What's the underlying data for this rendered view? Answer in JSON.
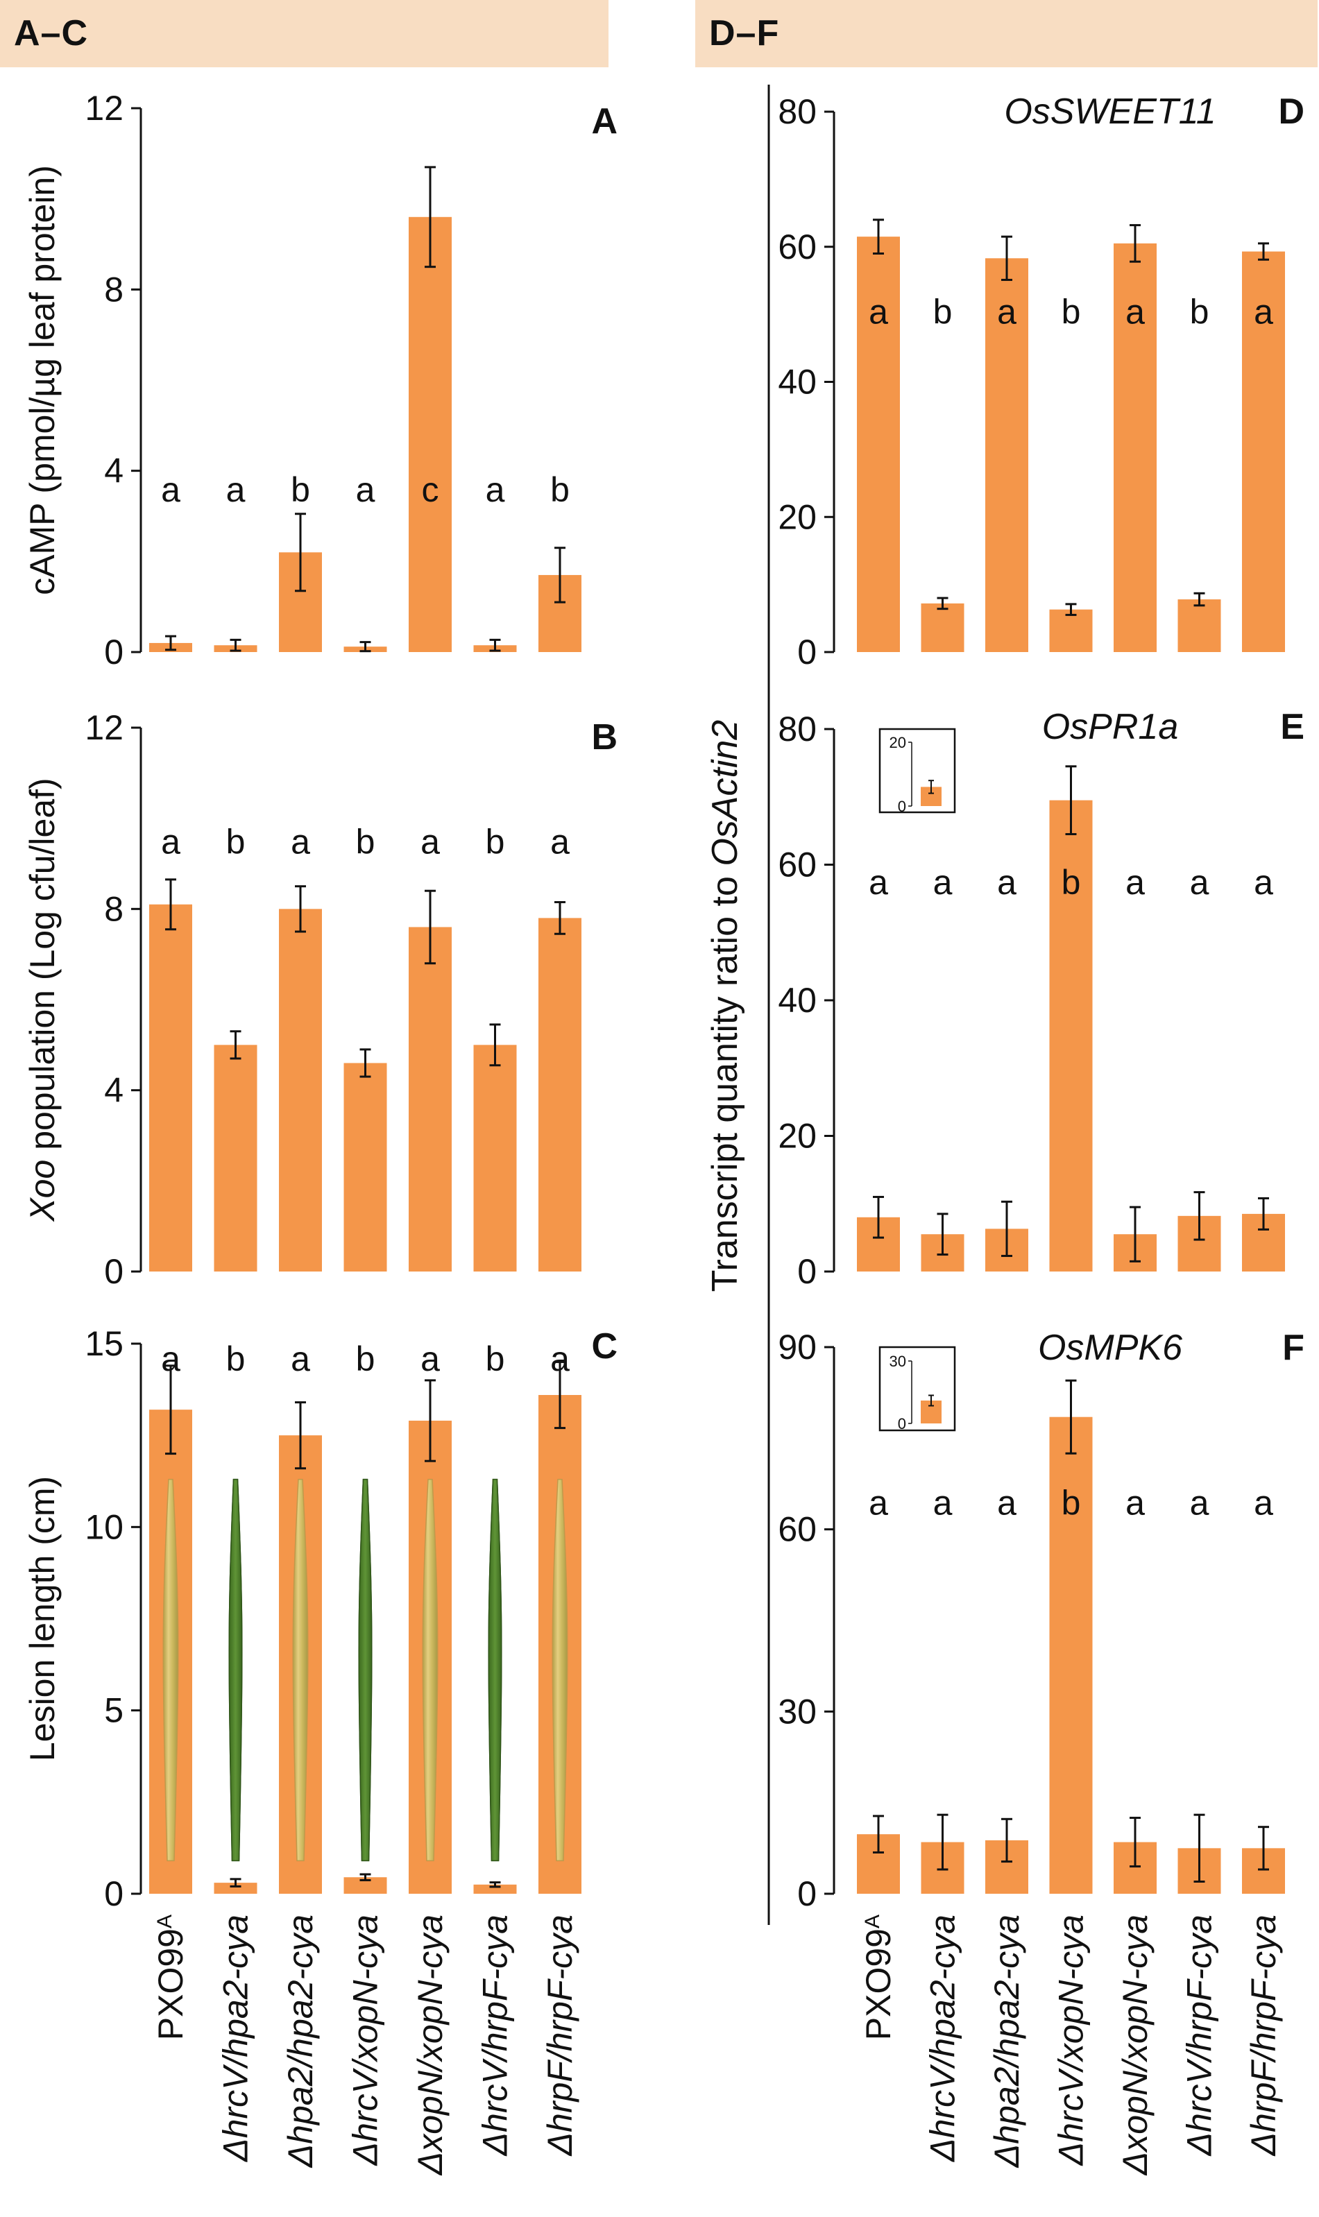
{
  "headers": {
    "left": "A–C",
    "right": "D–F"
  },
  "bar_color": "#f4964a",
  "x_labels": [
    {
      "base": "PXO99",
      "sup": "A",
      "italic": false
    },
    {
      "text": "ΔhrcV/hpa2-cya",
      "italic": true
    },
    {
      "text": "Δhpa2/hpa2-cya",
      "italic": true
    },
    {
      "text": "ΔhrcV/xopN-cya",
      "italic": true
    },
    {
      "text": "ΔxopN/xopN-cya",
      "italic": true
    },
    {
      "text": "ΔhrcV/hrpF-cya",
      "italic": true
    },
    {
      "text": "ΔhrpF/hrpF-cya",
      "italic": true
    }
  ],
  "shared_ylabel_right": {
    "prefix": "Transcript quantity ratio to ",
    "italic": "OsActin2"
  },
  "chart_data": [
    {
      "id": "A",
      "panel_label": "A",
      "type": "bar",
      "title": "",
      "ylabel": "cAMP (pmol/µg leaf protein)",
      "ylim": [
        0,
        12
      ],
      "yticks": [
        "0",
        "4",
        "8",
        "12"
      ],
      "categories": [
        "PXO99A",
        "ΔhrcV/hpa2-cya",
        "Δhpa2/hpa2-cya",
        "ΔhrcV/xopN-cya",
        "ΔxopN/xopN-cya",
        "ΔhrcV/hrpF-cya",
        "ΔhrpF/hrpF-cya"
      ],
      "values": [
        0.2,
        0.15,
        2.2,
        0.12,
        9.6,
        0.15,
        1.7
      ],
      "errors": [
        0.15,
        0.12,
        0.85,
        0.1,
        1.1,
        0.12,
        0.6
      ],
      "letters": [
        "a",
        "a",
        "b",
        "a",
        "c",
        "a",
        "b"
      ],
      "letter_y": 3.6
    },
    {
      "id": "B",
      "panel_label": "B",
      "type": "bar",
      "title": "",
      "ylabel_italic": "Xoo",
      "ylabel": " population (Log cfu/leaf)",
      "ylim": [
        0,
        12
      ],
      "yticks": [
        "0",
        "4",
        "8",
        "12"
      ],
      "categories": [
        "PXO99A",
        "ΔhrcV/hpa2-cya",
        "Δhpa2/hpa2-cya",
        "ΔhrcV/xopN-cya",
        "ΔxopN/xopN-cya",
        "ΔhrcV/hrpF-cya",
        "ΔhrpF/hrpF-cya"
      ],
      "values": [
        8.1,
        5.0,
        8.0,
        4.6,
        7.6,
        5.0,
        7.8
      ],
      "errors": [
        0.55,
        0.3,
        0.5,
        0.3,
        0.8,
        0.45,
        0.35
      ],
      "letters": [
        "a",
        "b",
        "a",
        "b",
        "a",
        "b",
        "a"
      ],
      "letter_y": 9.5
    },
    {
      "id": "C",
      "panel_label": "C",
      "type": "bar",
      "title": "",
      "ylabel": "Lesion length (cm)",
      "ylim": [
        0,
        15
      ],
      "yticks": [
        "0",
        "5",
        "10",
        "15"
      ],
      "categories": [
        "PXO99A",
        "ΔhrcV/hpa2-cya",
        "Δhpa2/hpa2-cya",
        "ΔhrcV/xopN-cya",
        "ΔxopN/xopN-cya",
        "ΔhrcV/hrpF-cya",
        "ΔhrpF/hrpF-cya"
      ],
      "values": [
        13.2,
        0.3,
        12.5,
        0.45,
        12.9,
        0.25,
        13.6
      ],
      "errors": [
        1.2,
        0.1,
        0.9,
        0.08,
        1.1,
        0.06,
        0.9
      ],
      "letters": [
        "a",
        "b",
        "a",
        "b",
        "a",
        "b",
        "a"
      ],
      "letter_y": 14.6,
      "leaf_images": [
        "lesioned",
        "healthy",
        "lesioned",
        "healthy",
        "lesioned",
        "healthy",
        "lesioned"
      ]
    },
    {
      "id": "D",
      "panel_label": "D",
      "type": "bar",
      "title": "OsSWEET11",
      "ylim": [
        0,
        80
      ],
      "yticks": [
        "0",
        "20",
        "40",
        "60",
        "80"
      ],
      "categories": [
        "PXO99A",
        "ΔhrcV/hpa2-cya",
        "Δhpa2/hpa2-cya",
        "ΔhrcV/xopN-cya",
        "ΔxopN/xopN-cya",
        "ΔhrcV/hrpF-cya",
        "ΔhrpF/hrpF-cya"
      ],
      "values": [
        61.5,
        7.2,
        58.3,
        6.3,
        60.5,
        7.8,
        59.3
      ],
      "errors": [
        2.5,
        0.8,
        3.2,
        0.8,
        2.7,
        0.9,
        1.2
      ],
      "letters": [
        "a",
        "b",
        "a",
        "b",
        "a",
        "b",
        "a"
      ],
      "letter_y": 50.5
    },
    {
      "id": "E",
      "panel_label": "E",
      "type": "bar",
      "title": "OsPR1a",
      "ylim": [
        0,
        80
      ],
      "yticks": [
        "0",
        "20",
        "40",
        "60",
        "80"
      ],
      "categories": [
        "PXO99A",
        "ΔhrcV/hpa2-cya",
        "Δhpa2/hpa2-cya",
        "ΔhrcV/xopN-cya",
        "ΔxopN/xopN-cya",
        "ΔhrcV/hrpF-cya",
        "ΔhrpF/hrpF-cya"
      ],
      "values": [
        8.0,
        5.5,
        6.3,
        69.5,
        5.5,
        8.2,
        8.5
      ],
      "errors": [
        3.0,
        3.0,
        4.0,
        5.0,
        4.0,
        3.5,
        2.3
      ],
      "letters": [
        "a",
        "a",
        "a",
        "b",
        "a",
        "a",
        "a"
      ],
      "letter_y": 57.5,
      "inset": {
        "ylim": [
          0,
          20
        ],
        "yticks": [
          "0",
          "20"
        ],
        "value": 6,
        "error": 2
      }
    },
    {
      "id": "F",
      "panel_label": "F",
      "type": "bar",
      "title": "OsMPK6",
      "ylim": [
        0,
        90
      ],
      "yticks": [
        "0",
        "30",
        "60",
        "90"
      ],
      "categories": [
        "PXO99A",
        "ΔhrcV/hpa2-cya",
        "Δhpa2/hpa2-cya",
        "ΔhrcV/xopN-cya",
        "ΔxopN/xopN-cya",
        "ΔhrcV/hrpF-cya",
        "ΔhrpF/hrpF-cya"
      ],
      "values": [
        9.8,
        8.5,
        8.8,
        78.5,
        8.5,
        7.5,
        7.5
      ],
      "errors": [
        3.0,
        4.5,
        3.5,
        6.0,
        4.0,
        5.5,
        3.5
      ],
      "letters": [
        "a",
        "a",
        "a",
        "b",
        "a",
        "a",
        "a"
      ],
      "letter_y": 64.5,
      "inset": {
        "ylim": [
          0,
          30
        ],
        "yticks": [
          "0",
          "30"
        ],
        "value": 11,
        "error": 2.5
      }
    }
  ]
}
